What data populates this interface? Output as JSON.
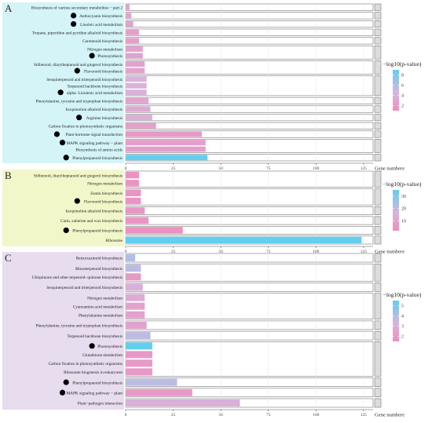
{
  "chart_data": [
    {
      "panel": "A",
      "type": "bar",
      "orientation": "horizontal",
      "xlim": [
        0,
        130
      ],
      "xticks": [
        0,
        25,
        50,
        75,
        100,
        125
      ],
      "xlabel": "Gene numbere",
      "legend_title": "−log10(p-value)",
      "legend_ticks": [
        2,
        4,
        6,
        8
      ],
      "legend_range": [
        1,
        9
      ],
      "groups": [
        {
          "rows": [
            {
              "name": "Biosynthesis of various secondary metabolites − part 2",
              "value": 2,
              "logp": 2.5,
              "dot": false
            }
          ]
        },
        {
          "rows": [
            {
              "name": "Anthocyanin biosynthesis",
              "value": 3,
              "logp": 3.0,
              "dot": true
            }
          ]
        },
        {
          "rows": [
            {
              "name": "Linoleic acid metabolism",
              "value": 4,
              "logp": 3.0,
              "dot": true
            }
          ]
        },
        {
          "rows": [
            {
              "name": "Tropane, piperidine and pyridine alkaloid biosynthesis",
              "value": 7,
              "logp": 2.5,
              "dot": false
            }
          ]
        },
        {
          "rows": [
            {
              "name": "Carotenoid biosynthesis",
              "value": 7,
              "logp": 2.5,
              "dot": false
            }
          ]
        },
        {
          "rows": [
            {
              "name": "Nitrogen metabolism",
              "value": 9,
              "logp": 2.8,
              "dot": false
            },
            {
              "name": "Photosynthesis",
              "value": 9,
              "logp": 2.8,
              "dot": true
            }
          ]
        },
        {
          "rows": [
            {
              "name": "Stilbenoid, diarylheptanoid and gingerol biosynthesis",
              "value": 10,
              "logp": 2.8,
              "dot": false
            },
            {
              "name": "Flavonoid biosynthesis",
              "value": 10,
              "logp": 2.8,
              "dot": true
            }
          ]
        },
        {
          "rows": [
            {
              "name": "Sesquiterpenoid and triterpenoid biosynthesis",
              "value": 11,
              "logp": 4.2,
              "dot": false
            },
            {
              "name": "Terpenoid backbone biosynthesis",
              "value": 11,
              "logp": 4.2,
              "dot": false
            },
            {
              "name": "alpha−Linolenic acid metabolism",
              "value": 11,
              "logp": 4.2,
              "dot": true
            }
          ]
        },
        {
          "rows": [
            {
              "name": "Phenylalanine, tyrosine and tryptophan biosynthesis",
              "value": 12,
              "logp": 3.0,
              "dot": false
            }
          ]
        },
        {
          "rows": [
            {
              "name": "Isoquinoline alkaloid biosynthesis",
              "value": 13,
              "logp": 3.5,
              "dot": false
            }
          ]
        },
        {
          "rows": [
            {
              "name": "Arginine biosynthesis",
              "value": 14,
              "logp": 4.0,
              "dot": true
            }
          ]
        },
        {
          "rows": [
            {
              "name": "Carbon fixation in photosynthetic organisms",
              "value": 16,
              "logp": 2.5,
              "dot": false
            }
          ]
        },
        {
          "rows": [
            {
              "name": "Plant hormone signal transduction",
              "value": 40,
              "logp": 2.0,
              "dot": true
            }
          ]
        },
        {
          "rows": [
            {
              "name": "MAPK signaling pathway − plant",
              "value": 42,
              "logp": 2.5,
              "dot": true
            },
            {
              "name": "Biosynthesis of amino acids",
              "value": 42,
              "logp": 2.5,
              "dot": false
            }
          ]
        },
        {
          "rows": [
            {
              "name": "Phenylpropanoid biosynthesis",
              "value": 43,
              "logp": 9.0,
              "dot": true
            }
          ]
        }
      ]
    },
    {
      "panel": "B",
      "type": "bar",
      "orientation": "horizontal",
      "xlim": [
        0,
        130
      ],
      "xticks": [
        0,
        25,
        50,
        75,
        100,
        125
      ],
      "xlabel": "Gene numbere",
      "legend_title": "−log10(p-value)",
      "legend_ticks": [
        10,
        20,
        30
      ],
      "legend_range": [
        2,
        35
      ],
      "groups": [
        {
          "rows": [
            {
              "name": "Stilbenoid, diarylheptanoid and gingerol biosynthesis",
              "value": 7,
              "logp": 4,
              "dot": false
            },
            {
              "name": "Nitrogen metabolism",
              "value": 7,
              "logp": 4,
              "dot": false
            }
          ]
        },
        {
          "rows": [
            {
              "name": "Zeatin biosynthesis",
              "value": 8,
              "logp": 4,
              "dot": false
            },
            {
              "name": "Flavonoid biosynthesis",
              "value": 8,
              "logp": 4,
              "dot": true
            }
          ]
        },
        {
          "rows": [
            {
              "name": "Isoquinoline alkaloid biosynthesis",
              "value": 10,
              "logp": 5,
              "dot": false
            }
          ]
        },
        {
          "rows": [
            {
              "name": "Cutin, suberine and wax biosynthesis",
              "value": 12,
              "logp": 4,
              "dot": false
            }
          ]
        },
        {
          "rows": [
            {
              "name": "Phenylpropanoid biosynthesis",
              "value": 30,
              "logp": 3,
              "dot": true
            }
          ]
        },
        {
          "rows": [
            {
              "name": "Ribosome",
              "value": 124,
              "logp": 35,
              "dot": false
            }
          ]
        }
      ]
    },
    {
      "panel": "C",
      "type": "bar",
      "orientation": "horizontal",
      "xlim": [
        0,
        130
      ],
      "xticks": [
        0,
        25,
        50,
        75,
        100,
        125
      ],
      "xlabel": "Gene numbere",
      "legend_title": "−log10(p-value)",
      "legend_ticks": [
        2,
        3,
        4,
        5
      ],
      "legend_range": [
        1.5,
        5.5
      ],
      "groups": [
        {
          "rows": [
            {
              "name": "Benzoxazinoid biosynthesis",
              "value": 5,
              "logp": 4.0,
              "dot": false
            }
          ]
        },
        {
          "rows": [
            {
              "name": "Monoterpenoid biosynthesis",
              "value": 8,
              "logp": 3.8,
              "dot": false
            },
            {
              "name": "Ubiquinone and other terpenoid−quinone biosynthesis",
              "value": 8,
              "logp": 2.0,
              "dot": false
            }
          ]
        },
        {
          "rows": [
            {
              "name": "Sesquiterpenoid and triterpenoid biosynthesis",
              "value": 9,
              "logp": 3.0,
              "dot": false
            }
          ]
        },
        {
          "rows": [
            {
              "name": "Nitrogen metabolism",
              "value": 10,
              "logp": 2.8,
              "dot": false
            },
            {
              "name": "Cyanoamino acid metabolism",
              "value": 10,
              "logp": 2.4,
              "dot": false
            },
            {
              "name": "Phenylalanine metabolism",
              "value": 10,
              "logp": 2.4,
              "dot": false
            }
          ]
        },
        {
          "rows": [
            {
              "name": "Phenylalanine, tyrosine and tryptophan biosynthesis",
              "value": 11,
              "logp": 2.4,
              "dot": false
            }
          ]
        },
        {
          "rows": [
            {
              "name": "Terpenoid backbone biosynthesis",
              "value": 13,
              "logp": 3.8,
              "dot": false
            }
          ]
        },
        {
          "rows": [
            {
              "name": "Photosynthesis",
              "value": 14,
              "logp": 5.5,
              "dot": true
            },
            {
              "name": "Glutathione metabolism",
              "value": 14,
              "logp": 2.0,
              "dot": false
            },
            {
              "name": "Carbon fixation in photosynthetic organisms",
              "value": 14,
              "logp": 2.0,
              "dot": false
            },
            {
              "name": "Ribosome biogenesis in eukaryotes",
              "value": 14,
              "logp": 2.0,
              "dot": false
            }
          ]
        },
        {
          "rows": [
            {
              "name": "Phenylpropanoid biosynthesis",
              "value": 27,
              "logp": 3.8,
              "dot": true
            }
          ]
        },
        {
          "rows": [
            {
              "name": "MAPK signaling pathway − plant",
              "value": 35,
              "logp": 2.0,
              "dot": true
            }
          ]
        },
        {
          "rows": [
            {
              "name": "Plant−pathogen interaction",
              "value": 60,
              "logp": 3.0,
              "dot": false
            }
          ]
        }
      ]
    }
  ]
}
